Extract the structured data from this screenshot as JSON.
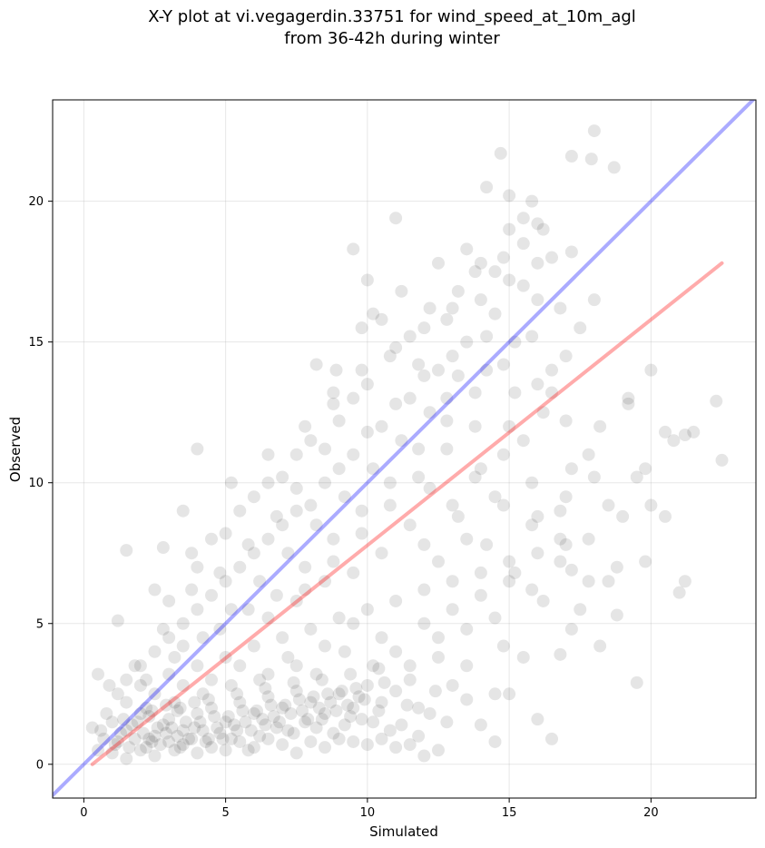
{
  "chart_data": {
    "type": "scatter",
    "title": "X-Y plot at vi.vegagerdin.33751 for wind_speed_at_10m_agl",
    "subtitle": "from 36-42h during winter",
    "xlabel": "Simulated",
    "ylabel": "Observed",
    "xlim": [
      -1.1,
      23.7
    ],
    "ylim": [
      -1.2,
      23.6
    ],
    "xticks": [
      0,
      5,
      10,
      15,
      20
    ],
    "yticks": [
      0,
      5,
      10,
      15,
      20
    ],
    "grid": true,
    "point_color": "#000000",
    "point_alpha": 0.1,
    "lines": [
      {
        "color": "#0000ff",
        "x": [
          -1.1,
          23.7
        ],
        "y": [
          -1.1,
          23.7
        ]
      },
      {
        "color": "#ff0000",
        "x": [
          0.3,
          22.5
        ],
        "y": [
          0.0,
          17.8
        ]
      }
    ],
    "points": [
      [
        16.5,
        0.9
      ],
      [
        19.5,
        2.9
      ],
      [
        16.0,
        1.6
      ],
      [
        17.2,
        6.9
      ],
      [
        19.0,
        8.8
      ],
      [
        18.8,
        5.3
      ],
      [
        19.5,
        10.2
      ],
      [
        20.0,
        9.2
      ],
      [
        20.5,
        11.8
      ],
      [
        21.2,
        11.7
      ],
      [
        22.3,
        12.9
      ],
      [
        22.5,
        10.8
      ],
      [
        21.0,
        6.1
      ],
      [
        21.2,
        6.5
      ],
      [
        20.0,
        14.0
      ],
      [
        18.0,
        22.5
      ],
      [
        18.7,
        21.2
      ],
      [
        17.2,
        21.6
      ],
      [
        17.9,
        21.5
      ],
      [
        14.7,
        21.7
      ],
      [
        15.0,
        20.2
      ],
      [
        15.5,
        19.4
      ],
      [
        14.5,
        17.5
      ],
      [
        13.5,
        18.3
      ],
      [
        12.5,
        17.8
      ],
      [
        11.0,
        19.4
      ],
      [
        9.5,
        18.3
      ],
      [
        10.0,
        17.2
      ],
      [
        8.9,
        14.0
      ],
      [
        8.2,
        14.2
      ],
      [
        8.8,
        12.8
      ],
      [
        7.5,
        11.0
      ],
      [
        6.5,
        11.0
      ],
      [
        5.2,
        10.0
      ],
      [
        4.0,
        11.2
      ],
      [
        3.5,
        9.0
      ],
      [
        2.8,
        7.7
      ],
      [
        1.5,
        7.6
      ],
      [
        1.2,
        5.1
      ],
      [
        0.5,
        3.2
      ],
      [
        0.3,
        1.3
      ],
      [
        0.5,
        0.5
      ],
      [
        1.0,
        0.4
      ],
      [
        1.5,
        0.2
      ],
      [
        2.0,
        0.5
      ],
      [
        2.5,
        0.3
      ],
      [
        3.0,
        0.8
      ],
      [
        3.5,
        0.7
      ],
      [
        4.0,
        0.4
      ],
      [
        4.5,
        0.6
      ],
      [
        5.0,
        0.5
      ],
      [
        5.5,
        0.8
      ],
      [
        6.0,
        0.6
      ],
      [
        6.5,
        0.9
      ],
      [
        7.0,
        0.7
      ],
      [
        7.5,
        0.4
      ],
      [
        8.0,
        0.8
      ],
      [
        8.5,
        0.6
      ],
      [
        9.0,
        0.9
      ],
      [
        9.5,
        0.8
      ],
      [
        10.0,
        0.7
      ],
      [
        10.5,
        0.9
      ],
      [
        11.0,
        0.6
      ],
      [
        11.5,
        0.7
      ],
      [
        12.0,
        0.3
      ],
      [
        12.5,
        0.5
      ],
      [
        13.5,
        2.3
      ],
      [
        14.0,
        1.4
      ],
      [
        14.5,
        0.8
      ],
      [
        15.0,
        2.5
      ],
      [
        1.0,
        1.5
      ],
      [
        1.5,
        1.2
      ],
      [
        2.0,
        1.8
      ],
      [
        2.5,
        1.0
      ],
      [
        3.0,
        1.6
      ],
      [
        3.5,
        1.2
      ],
      [
        4.0,
        1.8
      ],
      [
        4.5,
        2.0
      ],
      [
        5.0,
        1.5
      ],
      [
        5.5,
        2.2
      ],
      [
        6.0,
        1.8
      ],
      [
        6.5,
        2.4
      ],
      [
        7.0,
        2.0
      ],
      [
        7.5,
        2.6
      ],
      [
        8.0,
        2.2
      ],
      [
        8.5,
        1.8
      ],
      [
        9.0,
        2.5
      ],
      [
        9.5,
        2.0
      ],
      [
        10.0,
        2.8
      ],
      [
        10.5,
        2.2
      ],
      [
        11.0,
        2.6
      ],
      [
        11.5,
        3.0
      ],
      [
        2.0,
        2.8
      ],
      [
        3.0,
        3.2
      ],
      [
        4.0,
        3.5
      ],
      [
        5.0,
        3.8
      ],
      [
        6.0,
        4.2
      ],
      [
        7.0,
        4.5
      ],
      [
        8.0,
        4.8
      ],
      [
        9.0,
        5.2
      ],
      [
        10.0,
        5.5
      ],
      [
        11.0,
        5.8
      ],
      [
        12.0,
        6.2
      ],
      [
        13.0,
        6.5
      ],
      [
        14.0,
        6.8
      ],
      [
        15.0,
        7.2
      ],
      [
        16.0,
        7.5
      ],
      [
        17.0,
        7.8
      ],
      [
        1.5,
        3.0
      ],
      [
        2.5,
        4.0
      ],
      [
        3.5,
        5.0
      ],
      [
        4.5,
        6.0
      ],
      [
        5.5,
        7.0
      ],
      [
        6.5,
        8.0
      ],
      [
        7.5,
        9.0
      ],
      [
        8.5,
        10.0
      ],
      [
        9.5,
        11.0
      ],
      [
        10.5,
        12.0
      ],
      [
        11.5,
        13.0
      ],
      [
        12.5,
        14.0
      ],
      [
        13.5,
        15.0
      ],
      [
        14.5,
        16.0
      ],
      [
        15.5,
        17.0
      ],
      [
        16.5,
        18.0
      ],
      [
        3.0,
        5.8
      ],
      [
        4.0,
        7.0
      ],
      [
        5.0,
        8.2
      ],
      [
        6.0,
        9.5
      ],
      [
        7.0,
        10.2
      ],
      [
        8.0,
        11.5
      ],
      [
        9.0,
        12.2
      ],
      [
        10.0,
        13.5
      ],
      [
        11.0,
        14.8
      ],
      [
        12.0,
        15.5
      ],
      [
        13.0,
        16.2
      ],
      [
        14.0,
        17.8
      ],
      [
        15.0,
        19.0
      ],
      [
        16.0,
        19.2
      ],
      [
        14.2,
        20.5
      ],
      [
        15.8,
        20.0
      ],
      [
        12.8,
        13.0
      ],
      [
        13.8,
        12.0
      ],
      [
        14.8,
        11.0
      ],
      [
        15.8,
        10.0
      ],
      [
        16.8,
        9.0
      ],
      [
        17.8,
        8.0
      ],
      [
        18.8,
        7.0
      ],
      [
        12.2,
        9.8
      ],
      [
        13.2,
        8.8
      ],
      [
        14.2,
        7.8
      ],
      [
        15.2,
        6.8
      ],
      [
        16.2,
        5.8
      ],
      [
        17.2,
        4.8
      ],
      [
        18.2,
        4.2
      ],
      [
        12.5,
        4.5
      ],
      [
        13.5,
        3.5
      ],
      [
        14.5,
        2.5
      ],
      [
        11.8,
        2.0
      ],
      [
        12.8,
        1.5
      ],
      [
        10.2,
        3.5
      ],
      [
        9.2,
        4.0
      ],
      [
        8.2,
        3.2
      ],
      [
        7.2,
        3.8
      ],
      [
        6.2,
        3.0
      ],
      [
        5.2,
        2.8
      ],
      [
        4.2,
        2.5
      ],
      [
        3.2,
        2.2
      ],
      [
        2.2,
        2.0
      ],
      [
        1.2,
        2.5
      ],
      [
        0.8,
        1.8
      ],
      [
        1.8,
        0.9
      ],
      [
        2.8,
        1.4
      ],
      [
        3.8,
        0.9
      ],
      [
        4.8,
        1.1
      ],
      [
        5.8,
        0.5
      ],
      [
        6.8,
        1.3
      ],
      [
        7.8,
        1.5
      ],
      [
        8.8,
        1.1
      ],
      [
        9.8,
        1.6
      ],
      [
        10.8,
        1.2
      ],
      [
        11.8,
        1.0
      ],
      [
        12.2,
        1.8
      ],
      [
        13.0,
        2.8
      ],
      [
        14.8,
        4.2
      ],
      [
        15.5,
        3.8
      ],
      [
        16.8,
        3.9
      ],
      [
        17.5,
        5.5
      ],
      [
        18.5,
        6.5
      ],
      [
        17.8,
        11.0
      ],
      [
        18.2,
        12.0
      ],
      [
        19.2,
        13.0
      ],
      [
        16.5,
        14.0
      ],
      [
        17.5,
        15.5
      ],
      [
        16.0,
        16.5
      ],
      [
        15.2,
        15.0
      ],
      [
        14.2,
        14.0
      ],
      [
        13.2,
        13.8
      ],
      [
        12.2,
        12.5
      ],
      [
        11.2,
        11.5
      ],
      [
        10.2,
        10.5
      ],
      [
        9.2,
        9.5
      ],
      [
        8.2,
        8.5
      ],
      [
        7.2,
        7.5
      ],
      [
        6.2,
        6.5
      ],
      [
        5.2,
        5.5
      ],
      [
        4.2,
        4.5
      ],
      [
        3.2,
        3.8
      ],
      [
        2.2,
        3.0
      ],
      [
        7.8,
        6.2
      ],
      [
        8.8,
        7.2
      ],
      [
        9.8,
        8.2
      ],
      [
        10.8,
        9.2
      ],
      [
        11.8,
        10.2
      ],
      [
        12.8,
        11.2
      ],
      [
        13.8,
        10.2
      ],
      [
        14.8,
        9.2
      ],
      [
        15.8,
        8.5
      ],
      [
        16.8,
        8.0
      ],
      [
        17.2,
        10.5
      ],
      [
        16.2,
        12.5
      ],
      [
        15.2,
        13.2
      ],
      [
        14.2,
        15.2
      ],
      [
        13.2,
        16.8
      ],
      [
        12.2,
        16.2
      ],
      [
        11.2,
        16.8
      ],
      [
        10.2,
        16.0
      ],
      [
        9.8,
        15.5
      ],
      [
        10.8,
        14.5
      ],
      [
        11.8,
        14.2
      ],
      [
        9.5,
        13.0
      ],
      [
        8.5,
        11.2
      ],
      [
        7.5,
        9.8
      ],
      [
        6.8,
        8.8
      ],
      [
        5.8,
        7.8
      ],
      [
        4.8,
        6.8
      ],
      [
        3.8,
        6.2
      ],
      [
        2.8,
        4.8
      ],
      [
        1.8,
        3.5
      ],
      [
        0.9,
        2.8
      ],
      [
        6.5,
        5.2
      ],
      [
        7.5,
        5.8
      ],
      [
        8.5,
        6.5
      ],
      [
        9.5,
        6.8
      ],
      [
        10.5,
        7.5
      ],
      [
        11.5,
        8.5
      ],
      [
        12.5,
        7.2
      ],
      [
        13.5,
        8.0
      ],
      [
        14.5,
        9.5
      ],
      [
        15.5,
        11.5
      ],
      [
        16.5,
        13.2
      ],
      [
        17.0,
        14.5
      ],
      [
        18.0,
        16.5
      ],
      [
        17.2,
        18.2
      ],
      [
        16.2,
        19.0
      ],
      [
        15.5,
        18.5
      ],
      [
        14.8,
        18.0
      ],
      [
        13.8,
        17.5
      ],
      [
        12.8,
        15.8
      ],
      [
        11.5,
        15.2
      ],
      [
        10.5,
        15.8
      ],
      [
        9.8,
        14.0
      ],
      [
        8.8,
        13.2
      ],
      [
        7.8,
        12.0
      ],
      [
        6.5,
        10.0
      ],
      [
        5.5,
        9.0
      ],
      [
        4.5,
        8.0
      ],
      [
        3.8,
        7.5
      ],
      [
        2.5,
        6.2
      ],
      [
        3.5,
        4.2
      ],
      [
        4.8,
        4.8
      ],
      [
        5.8,
        5.5
      ],
      [
        6.8,
        6.0
      ],
      [
        7.8,
        7.0
      ],
      [
        8.8,
        8.0
      ],
      [
        9.8,
        9.0
      ],
      [
        10.8,
        10.0
      ],
      [
        11.8,
        11.2
      ],
      [
        12.8,
        12.2
      ],
      [
        13.8,
        13.2
      ],
      [
        14.8,
        14.2
      ],
      [
        15.8,
        15.2
      ],
      [
        16.8,
        16.2
      ],
      [
        19.8,
        10.5
      ],
      [
        20.8,
        11.5
      ],
      [
        21.5,
        11.8
      ],
      [
        19.2,
        12.8
      ],
      [
        19.8,
        7.2
      ],
      [
        18.5,
        9.2
      ],
      [
        20.5,
        8.8
      ],
      [
        17.8,
        6.5
      ],
      [
        16.8,
        7.2
      ],
      [
        15.8,
        6.2
      ],
      [
        14.5,
        5.2
      ],
      [
        13.5,
        4.8
      ],
      [
        12.5,
        3.8
      ],
      [
        11.5,
        3.5
      ],
      [
        10.5,
        4.5
      ],
      [
        9.5,
        5.0
      ],
      [
        8.5,
        4.2
      ],
      [
        7.5,
        3.5
      ],
      [
        6.5,
        3.2
      ],
      [
        5.5,
        3.5
      ],
      [
        4.5,
        3.0
      ],
      [
        3.5,
        2.8
      ],
      [
        2.5,
        2.5
      ],
      [
        1.5,
        2.2
      ],
      [
        0.6,
        1.2
      ],
      [
        1.2,
        0.8
      ],
      [
        2.2,
        0.6
      ],
      [
        3.2,
        0.5
      ],
      [
        4.2,
        1.2
      ],
      [
        5.2,
        0.9
      ],
      [
        6.2,
        1.0
      ],
      [
        7.2,
        1.2
      ],
      [
        8.2,
        1.3
      ],
      [
        9.2,
        1.4
      ],
      [
        10.2,
        1.5
      ],
      [
        11.2,
        1.4
      ],
      [
        2.6,
        1.3
      ],
      [
        3.6,
        1.5
      ],
      [
        4.6,
        1.7
      ],
      [
        5.6,
        1.9
      ],
      [
        6.6,
        2.1
      ],
      [
        7.6,
        2.3
      ],
      [
        8.6,
        2.5
      ],
      [
        9.6,
        2.7
      ],
      [
        10.6,
        2.9
      ],
      [
        1.4,
        1.6
      ],
      [
        2.4,
        1.9
      ],
      [
        3.4,
        2.0
      ],
      [
        4.4,
        2.3
      ],
      [
        5.4,
        2.5
      ],
      [
        6.4,
        2.7
      ],
      [
        7.4,
        2.9
      ],
      [
        8.4,
        3.0
      ],
      [
        9.4,
        3.2
      ],
      [
        10.4,
        3.4
      ],
      [
        1.1,
        0.7
      ],
      [
        1.7,
        1.4
      ],
      [
        2.3,
        0.9
      ],
      [
        2.9,
        1.1
      ],
      [
        3.3,
        1.0
      ],
      [
        3.9,
        1.3
      ],
      [
        4.3,
        0.8
      ],
      [
        4.9,
        0.9
      ],
      [
        5.3,
        1.4
      ],
      [
        5.9,
        1.2
      ],
      [
        6.3,
        1.6
      ],
      [
        6.9,
        1.5
      ],
      [
        7.3,
        1.8
      ],
      [
        7.9,
        1.6
      ],
      [
        8.3,
        2.0
      ],
      [
        8.9,
        1.9
      ],
      [
        9.3,
        2.1
      ],
      [
        9.9,
        2.3
      ],
      [
        2.1,
        1.1
      ],
      [
        2.7,
        0.7
      ],
      [
        3.1,
        1.3
      ],
      [
        3.7,
        0.9
      ],
      [
        4.1,
        1.5
      ],
      [
        4.7,
        1.3
      ],
      [
        5.1,
        1.7
      ],
      [
        5.7,
        1.5
      ],
      [
        6.1,
        1.9
      ],
      [
        6.7,
        1.7
      ],
      [
        7.1,
        2.1
      ],
      [
        7.7,
        1.9
      ],
      [
        8.1,
        2.4
      ],
      [
        8.7,
        2.2
      ],
      [
        9.1,
        2.6
      ],
      [
        9.7,
        2.4
      ],
      [
        1.3,
        1.1
      ],
      [
        1.9,
        1.5
      ],
      [
        2.3,
        1.7
      ],
      [
        2.9,
        2.1
      ],
      [
        3.3,
        1.9
      ],
      [
        3.9,
        2.2
      ],
      [
        0.7,
        0.9
      ],
      [
        1.6,
        0.6
      ],
      [
        2.4,
        0.8
      ],
      [
        3.4,
        0.6
      ],
      [
        4.4,
        0.9
      ],
      [
        5.4,
        1.2
      ],
      [
        6.4,
        1.4
      ],
      [
        7.4,
        1.1
      ],
      [
        8.4,
        1.6
      ],
      [
        9.4,
        1.7
      ],
      [
        10.4,
        1.9
      ],
      [
        11.4,
        2.1
      ],
      [
        12.4,
        2.6
      ],
      [
        11.0,
        4.0
      ],
      [
        12.0,
        5.0
      ],
      [
        13.0,
        5.5
      ],
      [
        14.0,
        6.0
      ],
      [
        15.0,
        6.5
      ],
      [
        16.0,
        8.8
      ],
      [
        17.0,
        9.5
      ],
      [
        18.0,
        10.2
      ],
      [
        12.0,
        7.8
      ],
      [
        13.0,
        9.2
      ],
      [
        14.0,
        10.5
      ],
      [
        15.0,
        12.0
      ],
      [
        16.0,
        13.5
      ],
      [
        17.0,
        12.2
      ],
      [
        10.0,
        11.8
      ],
      [
        11.0,
        12.8
      ],
      [
        12.0,
        13.8
      ],
      [
        13.0,
        14.5
      ],
      [
        14.0,
        16.5
      ],
      [
        15.0,
        17.2
      ],
      [
        16.0,
        17.8
      ],
      [
        9.0,
        10.5
      ],
      [
        8.0,
        9.2
      ],
      [
        7.0,
        8.5
      ],
      [
        6.0,
        7.5
      ],
      [
        5.0,
        6.5
      ],
      [
        4.0,
        5.5
      ],
      [
        3.0,
        4.5
      ],
      [
        2.0,
        3.5
      ]
    ]
  }
}
